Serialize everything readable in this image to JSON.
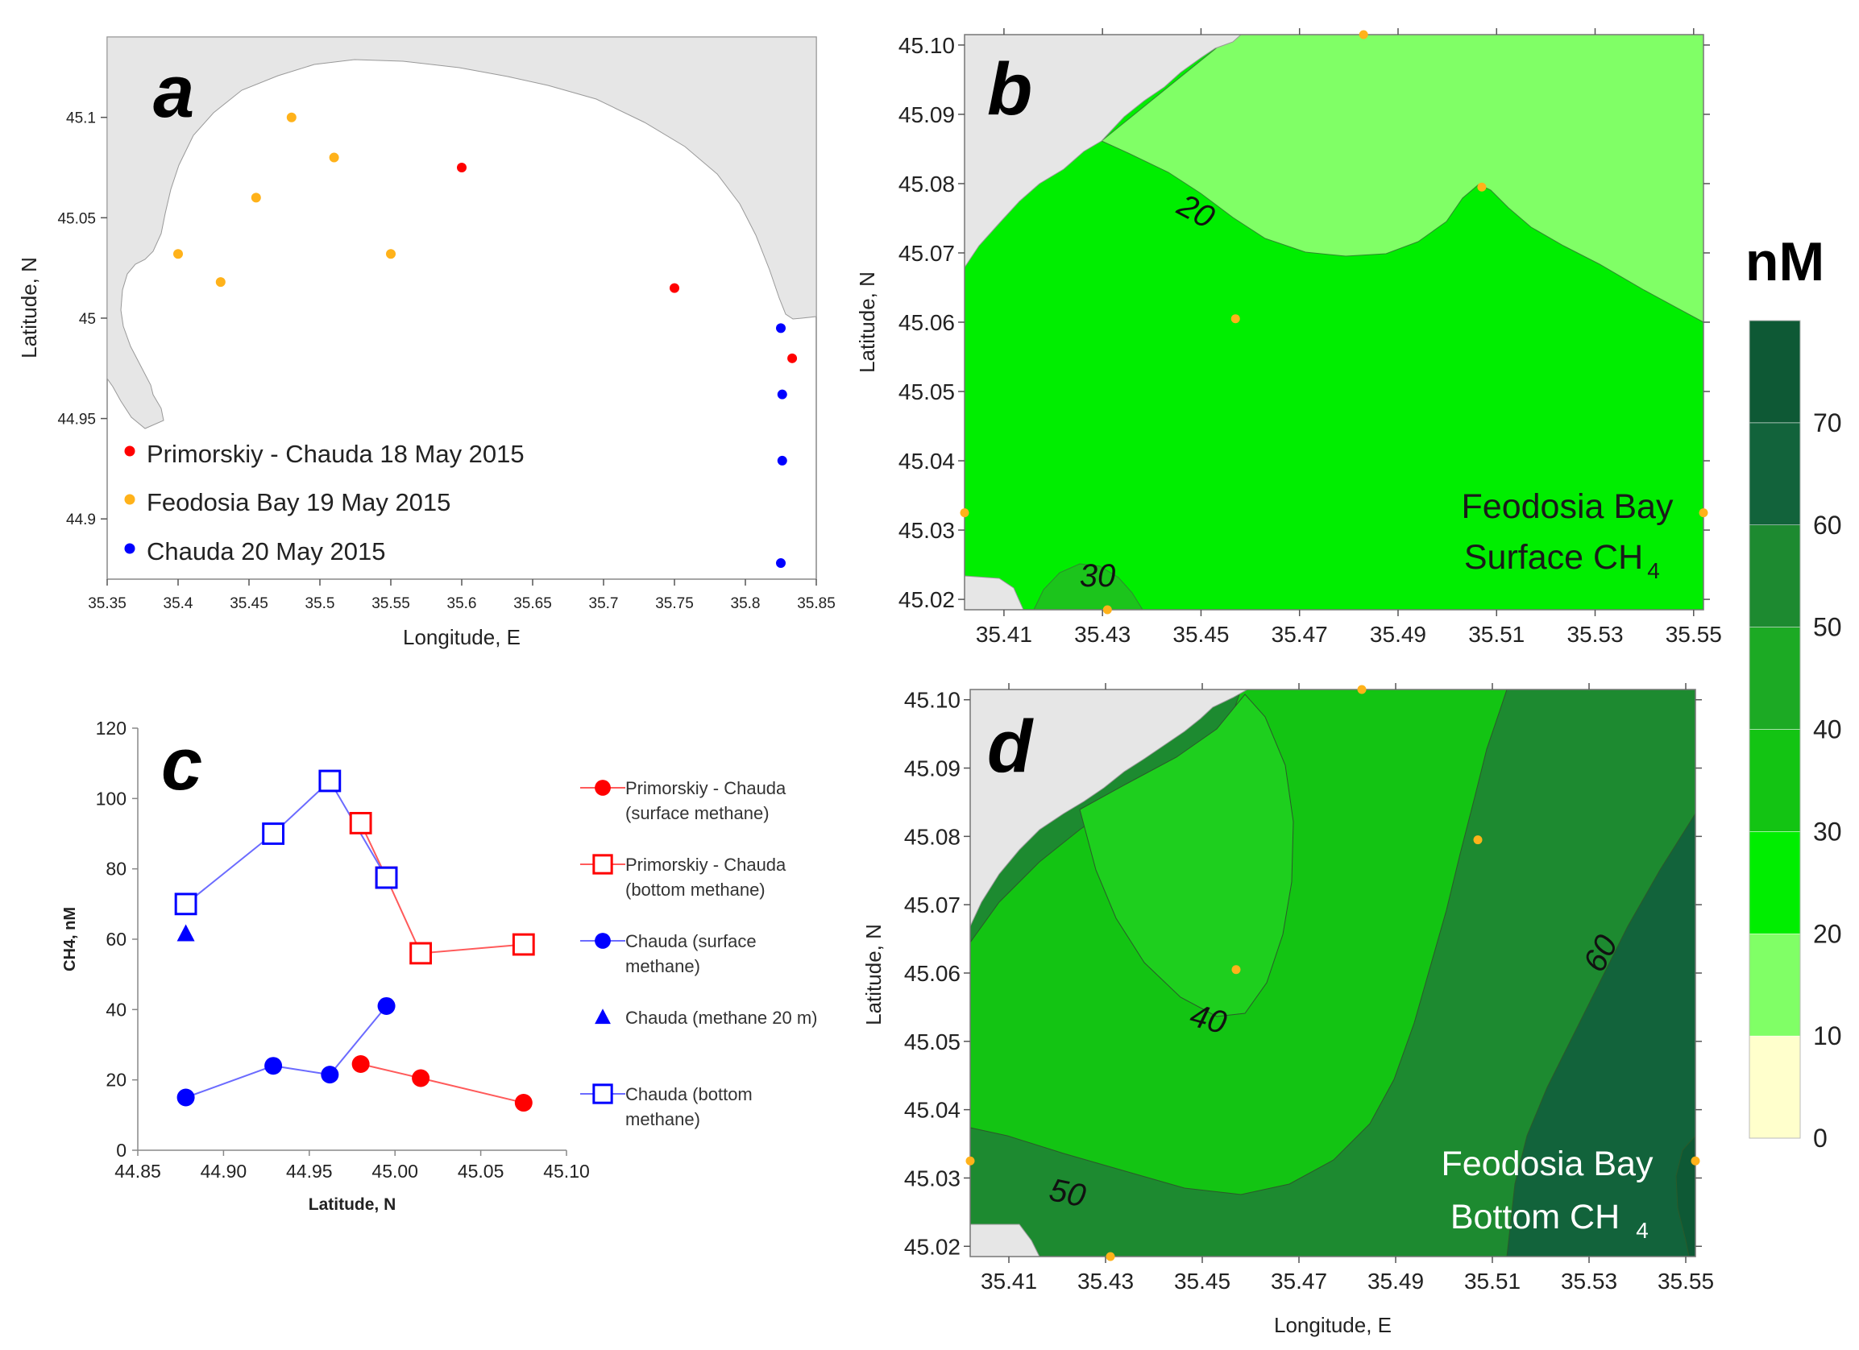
{
  "panel_letters": {
    "a": "a",
    "b": "b",
    "c": "c",
    "d": "d"
  },
  "colors": {
    "land": "#e6e6e6",
    "red": "#ff0000",
    "orange": "#ffb21a",
    "blue": "#0000ff",
    "line_red": "#ff5a5a",
    "line_blue": "#6b6bff",
    "levels": [
      "#ffffcc",
      "#80ff66",
      "#00ee00",
      "#13c413",
      "#1caa24",
      "#1d8a30",
      "#12633b",
      "#0e5935"
    ]
  },
  "chart_data": [
    {
      "id": "a",
      "type": "scatter",
      "title": "",
      "xlabel": "Longitude, E",
      "ylabel": "Latitude, N",
      "xlim": [
        35.35,
        35.85
      ],
      "ylim": [
        44.87,
        45.14
      ],
      "xticks": [
        "35.35",
        "35.4",
        "35.45",
        "35.5",
        "35.55",
        "35.6",
        "35.65",
        "35.7",
        "35.75",
        "35.8",
        "35.85"
      ],
      "yticks": [
        "44.9",
        "44.95",
        "45",
        "45.05",
        "45.1"
      ],
      "series": [
        {
          "name": "Primorskiy - Chauda 18 May 2015",
          "color": "red",
          "points": [
            [
              35.6,
              45.075
            ],
            [
              35.75,
              45.015
            ],
            [
              35.833,
              44.98
            ]
          ]
        },
        {
          "name": "Feodosia Bay 19 May 2015",
          "color": "orange",
          "points": [
            [
              35.48,
              45.1
            ],
            [
              35.51,
              45.08
            ],
            [
              35.455,
              45.06
            ],
            [
              35.4,
              45.032
            ],
            [
              35.43,
              45.018
            ],
            [
              35.55,
              45.032
            ]
          ]
        },
        {
          "name": "Chauda 20 May 2015",
          "color": "blue",
          "points": [
            [
              35.825,
              44.995
            ],
            [
              35.826,
              44.962
            ],
            [
              35.826,
              44.929
            ],
            [
              35.825,
              44.878
            ]
          ]
        }
      ]
    },
    {
      "id": "b",
      "type": "contour",
      "title": "Feodosia Bay Surface CH4",
      "title_lines": [
        "Feodosia Bay",
        "Surface CH"
      ],
      "subscript": "4",
      "xlabel": "",
      "ylabel": "Latitude, N",
      "xlim": [
        35.402,
        35.552
      ],
      "ylim": [
        45.0185,
        45.1015
      ],
      "xticks": [
        "35.41",
        "35.43",
        "35.45",
        "35.47",
        "35.49",
        "35.51",
        "35.53",
        "35.55"
      ],
      "yticks": [
        "45.10",
        "45.09",
        "45.08",
        "45.07",
        "45.06",
        "45.05",
        "45.04",
        "45.03",
        "45.02"
      ],
      "contour_labels": [
        "20",
        "30"
      ],
      "stations": [
        [
          35.483,
          45.1015
        ],
        [
          35.507,
          45.0795
        ],
        [
          35.457,
          45.0605
        ],
        [
          35.402,
          45.0325
        ],
        [
          35.552,
          45.0325
        ],
        [
          35.431,
          45.0185
        ]
      ]
    },
    {
      "id": "c",
      "type": "line",
      "title": "",
      "xlabel": "Latitude, N",
      "ylabel": "CH4, nM",
      "xlim": [
        44.85,
        45.1
      ],
      "ylim": [
        0,
        120
      ],
      "xticks": [
        "44.85",
        "44.90",
        "44.95",
        "45.00",
        "45.05",
        "45.10"
      ],
      "yticks": [
        "0",
        "20",
        "40",
        "60",
        "80",
        "100",
        "120"
      ],
      "series": [
        {
          "name": "Primorskiy - Chauda (surface methane)",
          "legend_lines": [
            "Primorskiy - Chauda",
            "(surface methane)"
          ],
          "color": "red",
          "marker": "circle",
          "x": [
            44.98,
            45.015,
            45.075
          ],
          "y": [
            24.5,
            20.5,
            13.5
          ]
        },
        {
          "name": "Primorskiy - Chauda (bottom methane)",
          "legend_lines": [
            "Primorskiy - Chauda",
            "(bottom methane)"
          ],
          "color": "red",
          "marker": "square",
          "x": [
            44.98,
            44.995,
            45.015,
            45.075
          ],
          "y": [
            93,
            77.5,
            56,
            58.5
          ]
        },
        {
          "name": "Chauda (surface methane)",
          "legend_lines": [
            "Chauda (surface",
            "methane)"
          ],
          "color": "blue",
          "marker": "circle",
          "x": [
            44.878,
            44.929,
            44.962,
            44.995
          ],
          "y": [
            15,
            24,
            21.5,
            41
          ]
        },
        {
          "name": "Chauda (methane 20 m)",
          "legend_lines": [
            "Chauda (methane 20 m)"
          ],
          "color": "blue",
          "marker": "triangle",
          "x": [
            44.878
          ],
          "y": [
            61.5
          ]
        },
        {
          "name": "Chauda (bottom methane)",
          "legend_lines": [
            "Chauda (bottom",
            "methane)"
          ],
          "color": "blue",
          "marker": "square",
          "x": [
            44.878,
            44.929,
            44.962,
            44.995
          ],
          "y": [
            70,
            90,
            105,
            77.5
          ]
        }
      ]
    },
    {
      "id": "d",
      "type": "contour",
      "title": "Feodosia Bay Bottom CH4",
      "title_lines": [
        "Feodosia Bay",
        "Bottom CH"
      ],
      "subscript": "4",
      "xlabel": "Longitude, E",
      "ylabel": "Latitude, N",
      "xlim": [
        35.402,
        35.552
      ],
      "ylim": [
        45.0185,
        45.1015
      ],
      "xticks": [
        "35.41",
        "35.43",
        "35.45",
        "35.47",
        "35.49",
        "35.51",
        "35.53",
        "35.55"
      ],
      "yticks": [
        "45.10",
        "45.09",
        "45.08",
        "45.07",
        "45.06",
        "45.05",
        "45.04",
        "45.03",
        "45.02"
      ],
      "contour_labels": [
        "40",
        "50",
        "60"
      ],
      "stations": [
        [
          35.483,
          45.1015
        ],
        [
          35.507,
          45.0795
        ],
        [
          35.457,
          45.0605
        ],
        [
          35.402,
          45.0325
        ],
        [
          35.552,
          45.0325
        ],
        [
          35.431,
          45.0185
        ]
      ]
    },
    {
      "id": "colorbar",
      "type": "colorbar",
      "title": "nM",
      "levels": [
        "0",
        "10",
        "20",
        "30",
        "40",
        "50",
        "60",
        "70"
      ]
    }
  ]
}
